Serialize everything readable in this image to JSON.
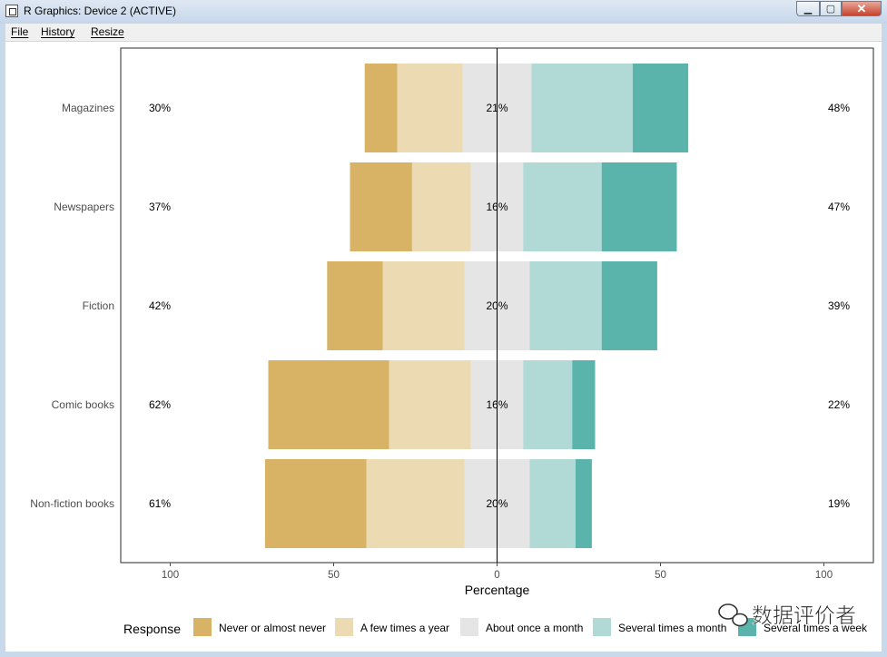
{
  "window": {
    "title": "R Graphics: Device 2 (ACTIVE)",
    "controls": {
      "minimize": "▁",
      "maximize": "▢",
      "close": "✕"
    }
  },
  "menu": {
    "items": [
      "File",
      "History",
      "Resize"
    ]
  },
  "watermark": {
    "text": "数据评价者"
  },
  "colors": {
    "background": "#ffffff",
    "panel_border": "#4d4d4d",
    "center_line": "#000000",
    "series": [
      "#D8B365",
      "#EBDAB2",
      "#E5E5E5",
      "#B1DAD7",
      "#5AB4AC"
    ]
  },
  "chart_data": {
    "type": "bar",
    "orientation": "horizontal",
    "stacking": "diverging",
    "xlabel": "Percentage",
    "xlim": [
      -100,
      100
    ],
    "x_ticks": [
      -100,
      -50,
      0,
      50,
      100
    ],
    "x_tick_labels": [
      "100",
      "50",
      "0",
      "50",
      "100"
    ],
    "categories": [
      "Magazines",
      "Newspapers",
      "Fiction",
      "Comic books",
      "Non-fiction books"
    ],
    "series": [
      {
        "name": "Never or almost never",
        "values": [
          10,
          19,
          17,
          37,
          31
        ]
      },
      {
        "name": "A few times a year",
        "values": [
          20,
          18,
          25,
          25,
          30
        ]
      },
      {
        "name": "About once a month",
        "values": [
          21,
          16,
          20,
          16,
          20
        ]
      },
      {
        "name": "Several times a month",
        "values": [
          31,
          24,
          22,
          15,
          14
        ]
      },
      {
        "name": "Several times a week",
        "values": [
          17,
          23,
          17,
          7,
          5
        ]
      }
    ],
    "left_labels": [
      "30%",
      "37%",
      "42%",
      "62%",
      "61%"
    ],
    "center_labels": [
      "21%",
      "16%",
      "20%",
      "16%",
      "20%"
    ],
    "right_labels": [
      "48%",
      "47%",
      "39%",
      "22%",
      "19%"
    ],
    "legend": {
      "title": "Response",
      "position": "bottom",
      "items": [
        "Never or almost never",
        "A few times a year",
        "About once a month",
        "Several times a month",
        "Several times a week"
      ]
    },
    "grid": false
  }
}
